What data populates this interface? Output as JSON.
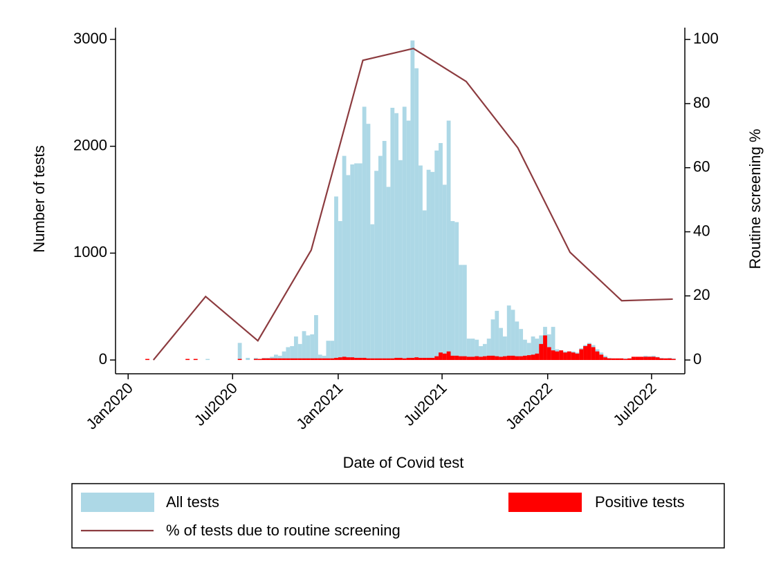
{
  "chart_data": {
    "type": "bar",
    "x_label": "Date of Covid test",
    "y_label": "Number of tests",
    "y2_label": "Routine screening %",
    "x": [
      21945,
      21952,
      21959,
      21966,
      21973,
      21980,
      21987,
      21994,
      22001,
      22008,
      22015,
      22022,
      22029,
      22036,
      22043,
      22050,
      22057,
      22064,
      22071,
      22078,
      22085,
      22092,
      22099,
      22106,
      22113,
      22120,
      22127,
      22134,
      22141,
      22148,
      22155,
      22162,
      22169,
      22176,
      22183,
      22190,
      22197,
      22204,
      22211,
      22218,
      22225,
      22232,
      22239,
      22246,
      22253,
      22260,
      22267,
      22274,
      22281,
      22288,
      22295,
      22302,
      22309,
      22316,
      22323,
      22330,
      22337,
      22344,
      22351,
      22358,
      22365,
      22372,
      22379,
      22386,
      22393,
      22400,
      22407,
      22414,
      22421,
      22428,
      22435,
      22442,
      22449,
      22456,
      22463,
      22470,
      22477,
      22484,
      22491,
      22498,
      22505,
      22512,
      22519,
      22526,
      22533,
      22540,
      22547,
      22554,
      22561,
      22568,
      22575,
      22582,
      22589,
      22596,
      22603,
      22610,
      22617,
      22624,
      22631,
      22638,
      22645,
      22652,
      22659,
      22666,
      22673,
      22680,
      22687,
      22694,
      22701,
      22708,
      22715,
      22722,
      22729,
      22736,
      22743,
      22750,
      22757,
      22764,
      22771,
      22778,
      22785,
      22792,
      22799,
      22806,
      22813,
      22820,
      22827,
      22834,
      22841,
      22848,
      22855,
      22862
    ],
    "series": [
      {
        "name": "All tests",
        "color": "#add8e6",
        "values": [
          10,
          0,
          0,
          0,
          0,
          0,
          0,
          0,
          0,
          0,
          10,
          0,
          10,
          0,
          0,
          10,
          0,
          0,
          0,
          0,
          0,
          0,
          0,
          160,
          0,
          20,
          0,
          20,
          10,
          20,
          20,
          30,
          50,
          40,
          80,
          120,
          130,
          220,
          150,
          270,
          230,
          240,
          420,
          50,
          40,
          180,
          180,
          1530,
          1300,
          1910,
          1730,
          1830,
          1840,
          1840,
          2370,
          2210,
          1270,
          1770,
          1910,
          2050,
          1620,
          2360,
          2310,
          1870,
          2370,
          2240,
          2990,
          2730,
          1820,
          1400,
          1780,
          1760,
          1960,
          2030,
          1640,
          2240,
          1300,
          1290,
          890,
          890,
          200,
          200,
          190,
          130,
          150,
          200,
          380,
          460,
          300,
          220,
          510,
          470,
          360,
          290,
          190,
          160,
          220,
          200,
          230,
          310,
          240,
          310,
          100,
          90,
          80,
          80,
          80,
          70,
          110,
          140,
          160,
          140,
          100,
          70,
          40,
          20,
          15,
          15,
          15,
          15,
          15,
          30,
          30,
          30,
          40,
          35,
          40,
          30,
          20,
          15,
          20,
          15
        ]
      },
      {
        "name": "Positive tests",
        "color": "#ff0000",
        "values": [
          10,
          0,
          0,
          0,
          0,
          0,
          0,
          0,
          0,
          0,
          10,
          0,
          10,
          0,
          0,
          0,
          0,
          0,
          0,
          0,
          0,
          0,
          0,
          10,
          0,
          0,
          0,
          10,
          10,
          15,
          15,
          15,
          15,
          15,
          15,
          15,
          15,
          15,
          15,
          15,
          15,
          15,
          15,
          15,
          15,
          15,
          15,
          20,
          25,
          30,
          25,
          25,
          20,
          20,
          20,
          15,
          15,
          15,
          15,
          15,
          15,
          15,
          20,
          20,
          15,
          20,
          20,
          25,
          20,
          20,
          20,
          20,
          35,
          70,
          60,
          80,
          40,
          40,
          35,
          35,
          30,
          30,
          35,
          30,
          35,
          40,
          40,
          35,
          30,
          35,
          40,
          40,
          35,
          35,
          40,
          45,
          50,
          60,
          150,
          230,
          120,
          90,
          80,
          90,
          70,
          80,
          70,
          60,
          100,
          130,
          150,
          120,
          80,
          50,
          25,
          15,
          15,
          15,
          15,
          10,
          15,
          30,
          30,
          30,
          30,
          30,
          30,
          25,
          15,
          15,
          15,
          10
        ]
      },
      {
        "name": "% of tests due to routine screening",
        "type": "line",
        "axis": "y2",
        "color": "#8c3b3f",
        "x": [
          21959,
          22050,
          22141,
          22234,
          22324,
          22412,
          22504,
          22594,
          22685,
          22775,
          22864
        ],
        "values": [
          0,
          19.8,
          6,
          34.3,
          93.5,
          97.2,
          86.9,
          66.2,
          33.6,
          18.5,
          19
        ]
      }
    ],
    "xlim": [
      21893,
      22885
    ],
    "xticks": [
      {
        "value": 21915,
        "label": "Jan2020"
      },
      {
        "value": 22097,
        "label": "Jul2020"
      },
      {
        "value": 22281,
        "label": "Jan2021"
      },
      {
        "value": 22462,
        "label": "Jul2021"
      },
      {
        "value": 22646,
        "label": "Jan2022"
      },
      {
        "value": 22827,
        "label": "Jul2022"
      }
    ],
    "ylim": [
      -129,
      3110
    ],
    "yticks": [
      0,
      1000,
      2000,
      3000
    ],
    "y2lim": [
      -4.3,
      103.7
    ],
    "y2ticks": [
      0,
      20,
      40,
      60,
      80,
      100
    ],
    "legend": "bottom"
  }
}
